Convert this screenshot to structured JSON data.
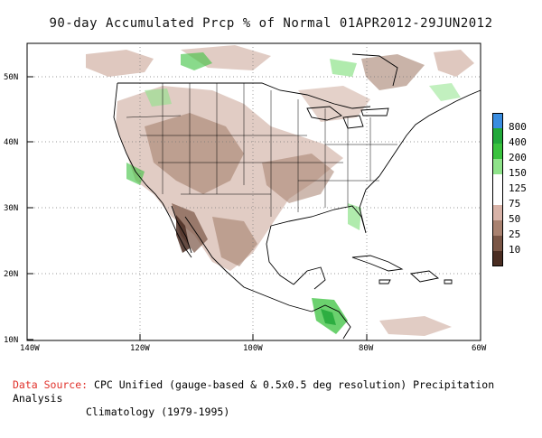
{
  "title": "90-day Accumulated Prcp % of Normal 01APR2012-29JUN2012",
  "axes": {
    "lat_labels": [
      "50N",
      "40N",
      "30N",
      "20N",
      "10N"
    ],
    "lon_labels": [
      "140W",
      "120W",
      "100W",
      "80W",
      "60W"
    ]
  },
  "legend": {
    "items": [
      {
        "label": "800",
        "color": "#3a8de0"
      },
      {
        "label": "400",
        "color": "#22a83a"
      },
      {
        "label": "200",
        "color": "#3ac23e"
      },
      {
        "label": "150",
        "color": "#8fe38a"
      },
      {
        "label": "125",
        "color": "#ffffff"
      },
      {
        "label": "75",
        "color": "#ffffff"
      },
      {
        "label": "50",
        "color": "#d8b3a8"
      },
      {
        "label": "25",
        "color": "#a98270"
      },
      {
        "label": "10",
        "color": "#7a5646"
      },
      {
        "label": "",
        "color": "#4a2d22"
      }
    ]
  },
  "source": {
    "label": "Data Source:",
    "text": "CPC Unified (gauge-based & 0.5x0.5 deg resolution) Precipitation Analysis",
    "text2": "Climatology (1979-1995)"
  }
}
